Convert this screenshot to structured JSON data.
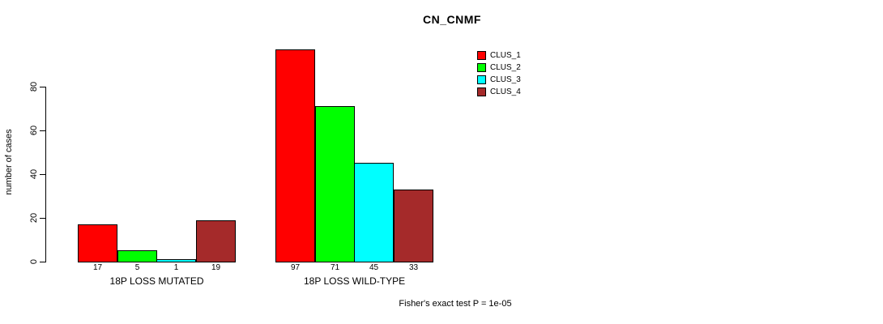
{
  "chart_data": {
    "type": "bar",
    "title": "CN_CNMF",
    "ylabel": "number of cases",
    "xlabel": "",
    "ylim": [
      0,
      80
    ],
    "yticks": [
      0,
      20,
      40,
      60,
      80
    ],
    "grid": false,
    "categories": [
      "18P LOSS MUTATED",
      "18P LOSS WILD-TYPE"
    ],
    "groups": [
      {
        "label": "18P LOSS MUTATED",
        "values": [
          17,
          5,
          1,
          19
        ]
      },
      {
        "label": "18P LOSS WILD-TYPE",
        "values": [
          97,
          71,
          45,
          33
        ]
      }
    ],
    "series": [
      {
        "name": "CLUS_1",
        "color": "#ff0000"
      },
      {
        "name": "CLUS_2",
        "color": "#00ff00"
      },
      {
        "name": "CLUS_3",
        "color": "#00ffff"
      },
      {
        "name": "CLUS_4",
        "color": "#a52a2a"
      }
    ],
    "legend_position": "top-right",
    "bar_value_labels": true,
    "annotation": "Fisher's exact test P = 1e-05"
  }
}
